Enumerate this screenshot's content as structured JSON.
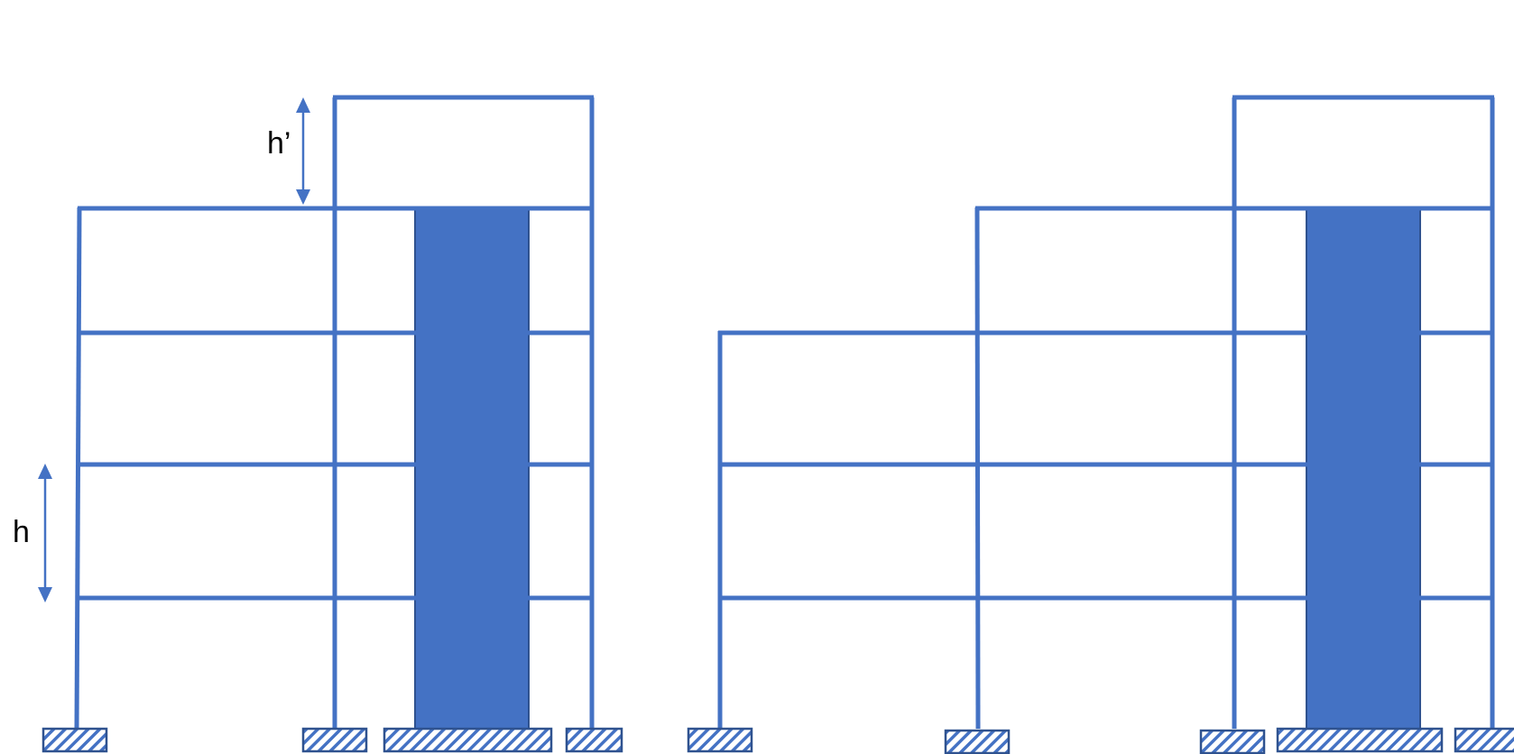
{
  "colors": {
    "frame": "#4472C4",
    "wall_fill": "#4472C4",
    "wall_outline": "#2F528F",
    "support_outline": "#2F528F",
    "label_text": "#000000"
  },
  "labels": {
    "roof_extension_height": "h’",
    "storey_height": "h"
  }
}
